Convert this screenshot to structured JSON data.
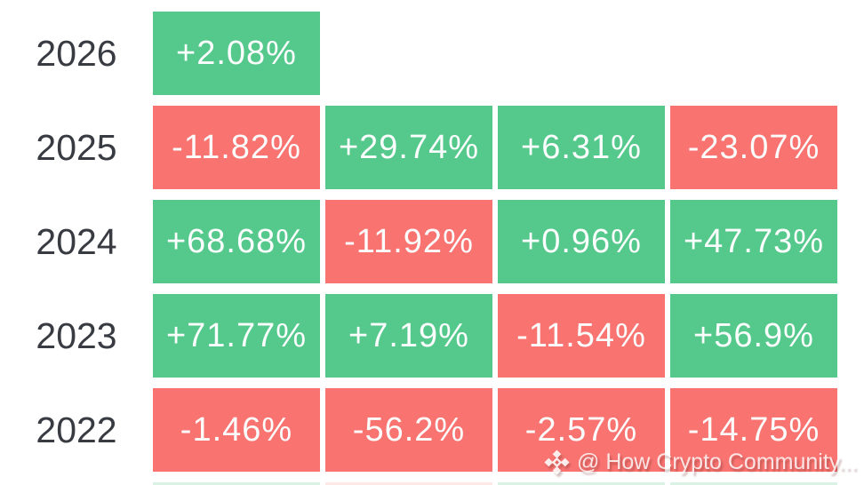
{
  "watermark": {
    "icon": "binance-logo-icon",
    "text": "@ How Crypto Community..."
  },
  "colors": {
    "positive": "#55C98C",
    "negative": "#F97370",
    "year_label": "#383C42",
    "cell_text": "#FCFDFD",
    "partial_positive": "#D9F2E4",
    "partial_negative": "#FDE8E6"
  },
  "chart_data": {
    "type": "heatmap",
    "description": "Quarterly percent returns per year; green cells positive, red cells negative",
    "legend_position": "none",
    "grid": false,
    "rows": [
      {
        "year": "2026",
        "values": [
          2.08
        ],
        "labels": [
          "+2.08%"
        ]
      },
      {
        "year": "2025",
        "values": [
          -11.82,
          29.74,
          6.31,
          -23.07
        ],
        "labels": [
          "-11.82%",
          "+29.74%",
          "+6.31%",
          "-23.07%"
        ]
      },
      {
        "year": "2024",
        "values": [
          68.68,
          -11.92,
          0.96,
          47.73
        ],
        "labels": [
          "+68.68%",
          "-11.92%",
          "+0.96%",
          "+47.73%"
        ]
      },
      {
        "year": "2023",
        "values": [
          71.77,
          7.19,
          -11.54,
          56.9
        ],
        "labels": [
          "+71.77%",
          "+7.19%",
          "-11.54%",
          "+56.9%"
        ]
      },
      {
        "year": "2022",
        "values": [
          -1.46,
          -56.2,
          -2.57,
          -14.75
        ],
        "labels": [
          "-1.46%",
          "-56.2%",
          "-2.57%",
          "-14.75%"
        ]
      }
    ],
    "partial_next_row": {
      "signs": [
        "positive",
        "negative",
        "positive",
        "positive"
      ]
    },
    "color_coding": {
      "positive": "#55C98C",
      "negative": "#F97370"
    }
  }
}
